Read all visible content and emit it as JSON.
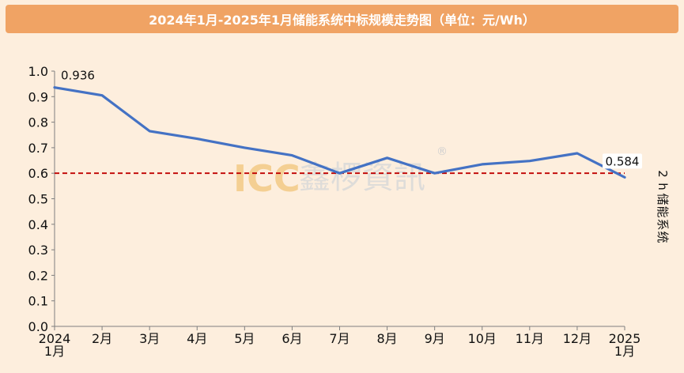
{
  "title": "2024年1月-2025年1月储能系统中标规模走势图（单位：元/Wh）",
  "watermark": {
    "en": "ICC",
    "cn": "鑫椤資訊",
    "mark": "®"
  },
  "chart_data": {
    "type": "line",
    "title": "2024年1月-2025年1月储能系统中标规模走势图（单位：元/Wh）",
    "categories": [
      [
        "2024",
        "1月"
      ],
      [
        "2月"
      ],
      [
        "3月"
      ],
      [
        "4月"
      ],
      [
        "5月"
      ],
      [
        "6月"
      ],
      [
        "7月"
      ],
      [
        "8月"
      ],
      [
        "9月"
      ],
      [
        "10月"
      ],
      [
        "11月"
      ],
      [
        "12月"
      ],
      [
        "2025",
        "1月"
      ]
    ],
    "series": [
      {
        "name": "2h储能系统",
        "values": [
          0.936,
          0.905,
          0.765,
          0.735,
          0.7,
          0.67,
          0.6,
          0.66,
          0.6,
          0.635,
          0.648,
          0.678,
          0.584
        ],
        "color": "#4472c4"
      }
    ],
    "annotations": [
      {
        "index": 0,
        "text": "0.936"
      },
      {
        "index": 12,
        "text": "0.584"
      }
    ],
    "reference_line": {
      "value": 0.6,
      "style": "dashed",
      "color": "#c00000"
    },
    "ylim": [
      0,
      1.0
    ],
    "yticks": [
      "0.0",
      "0.1",
      "0.2",
      "0.3",
      "0.4",
      "0.5",
      "0.6",
      "0.7",
      "0.8",
      "0.9",
      "1.0"
    ],
    "xlabel": "",
    "ylabel": "",
    "legend": "right",
    "grid": false
  }
}
